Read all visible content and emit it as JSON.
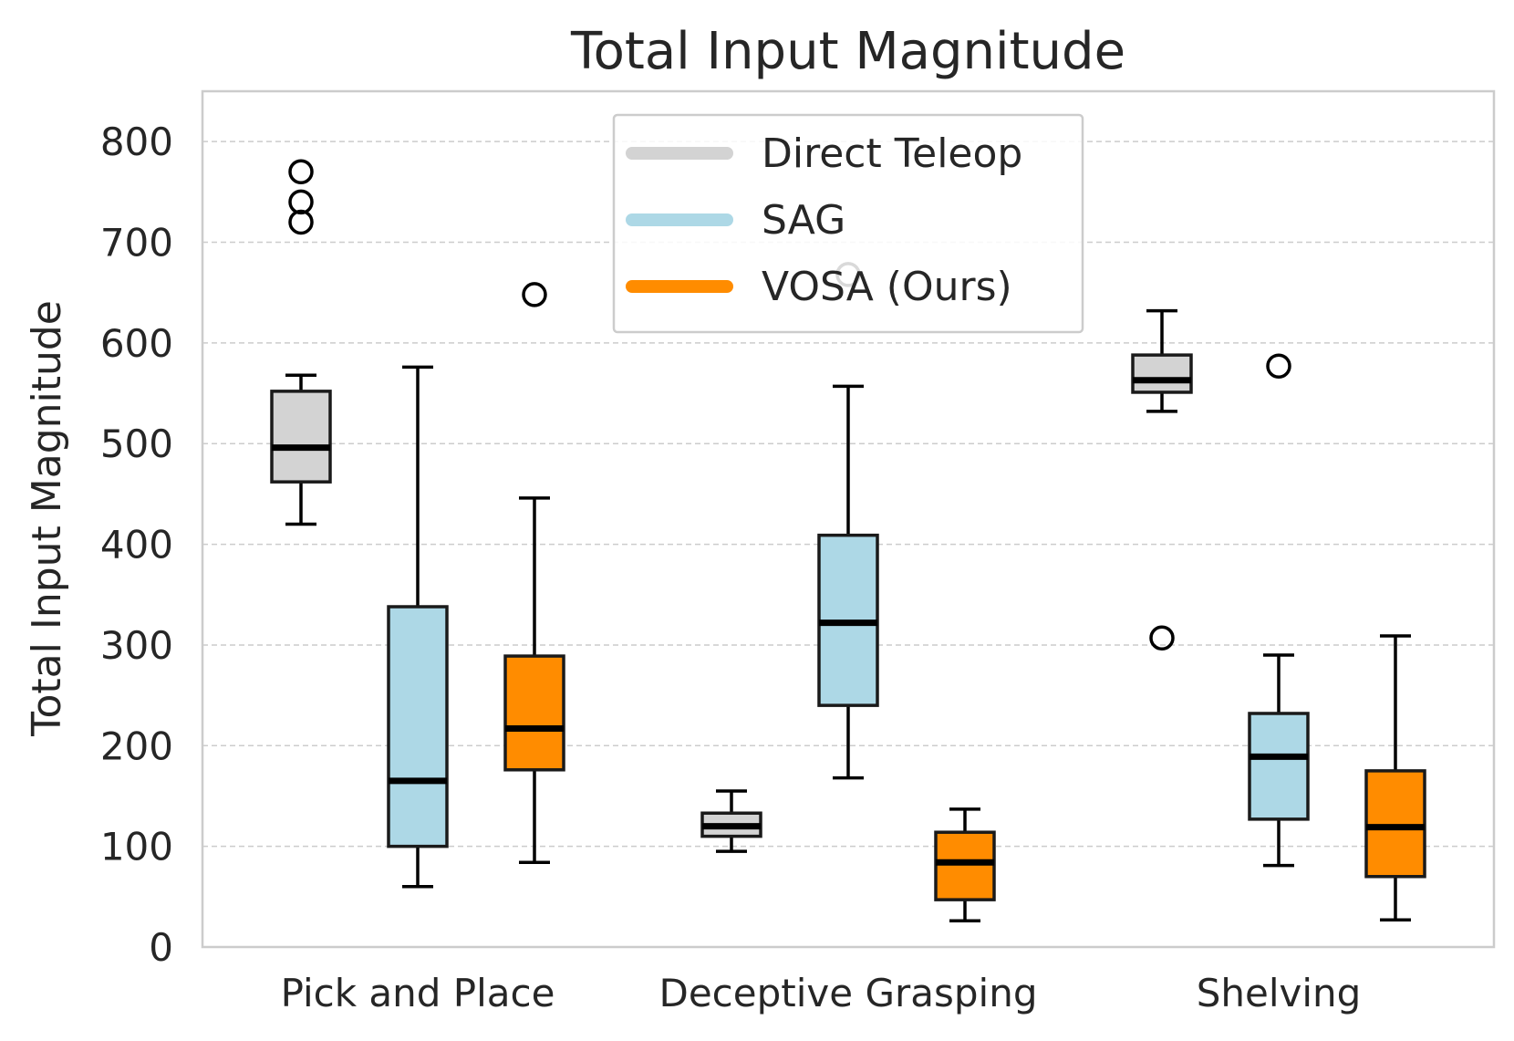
{
  "chart_data": {
    "type": "boxplot",
    "title": "Total Input Magnitude",
    "xlabel": "",
    "ylabel": "Total Input Magnitude",
    "ylim": [
      0,
      850
    ],
    "yticks": [
      0,
      100,
      200,
      300,
      400,
      500,
      600,
      700,
      800
    ],
    "grid": "horizontal-dashed",
    "legend_placement": "top-center",
    "categories": [
      "Pick and Place",
      "Deceptive Grasping",
      "Shelving"
    ],
    "series": [
      {
        "name": "Direct Teleop",
        "color": "#d3d3d3",
        "boxes": [
          {
            "whisker_low": 420,
            "q1": 462,
            "median": 496,
            "q3": 552,
            "whisker_high": 568,
            "outliers": [
              720,
              740,
              770
            ]
          },
          {
            "whisker_low": 95,
            "q1": 110,
            "median": 120,
            "q3": 133,
            "whisker_high": 155,
            "outliers": []
          },
          {
            "whisker_low": 532,
            "q1": 551,
            "median": 563,
            "q3": 588,
            "whisker_high": 632,
            "outliers": [
              307
            ]
          }
        ]
      },
      {
        "name": "SAG",
        "color": "#add8e6",
        "boxes": [
          {
            "whisker_low": 60,
            "q1": 100,
            "median": 165,
            "q3": 338,
            "whisker_high": 576,
            "outliers": []
          },
          {
            "whisker_low": 168,
            "q1": 240,
            "median": 322,
            "q3": 409,
            "whisker_high": 557,
            "outliers": [
              668
            ]
          },
          {
            "whisker_low": 81,
            "q1": 127,
            "median": 189,
            "q3": 232,
            "whisker_high": 290,
            "outliers": [
              577
            ]
          }
        ]
      },
      {
        "name": "VOSA (Ours)",
        "color": "#ff8c00",
        "boxes": [
          {
            "whisker_low": 84,
            "q1": 176,
            "median": 217,
            "q3": 289,
            "whisker_high": 446,
            "outliers": [
              648
            ]
          },
          {
            "whisker_low": 26,
            "q1": 47,
            "median": 84,
            "q3": 114,
            "whisker_high": 137,
            "outliers": []
          },
          {
            "whisker_low": 27,
            "q1": 70,
            "median": 119,
            "q3": 175,
            "whisker_high": 309,
            "outliers": []
          }
        ]
      }
    ]
  }
}
